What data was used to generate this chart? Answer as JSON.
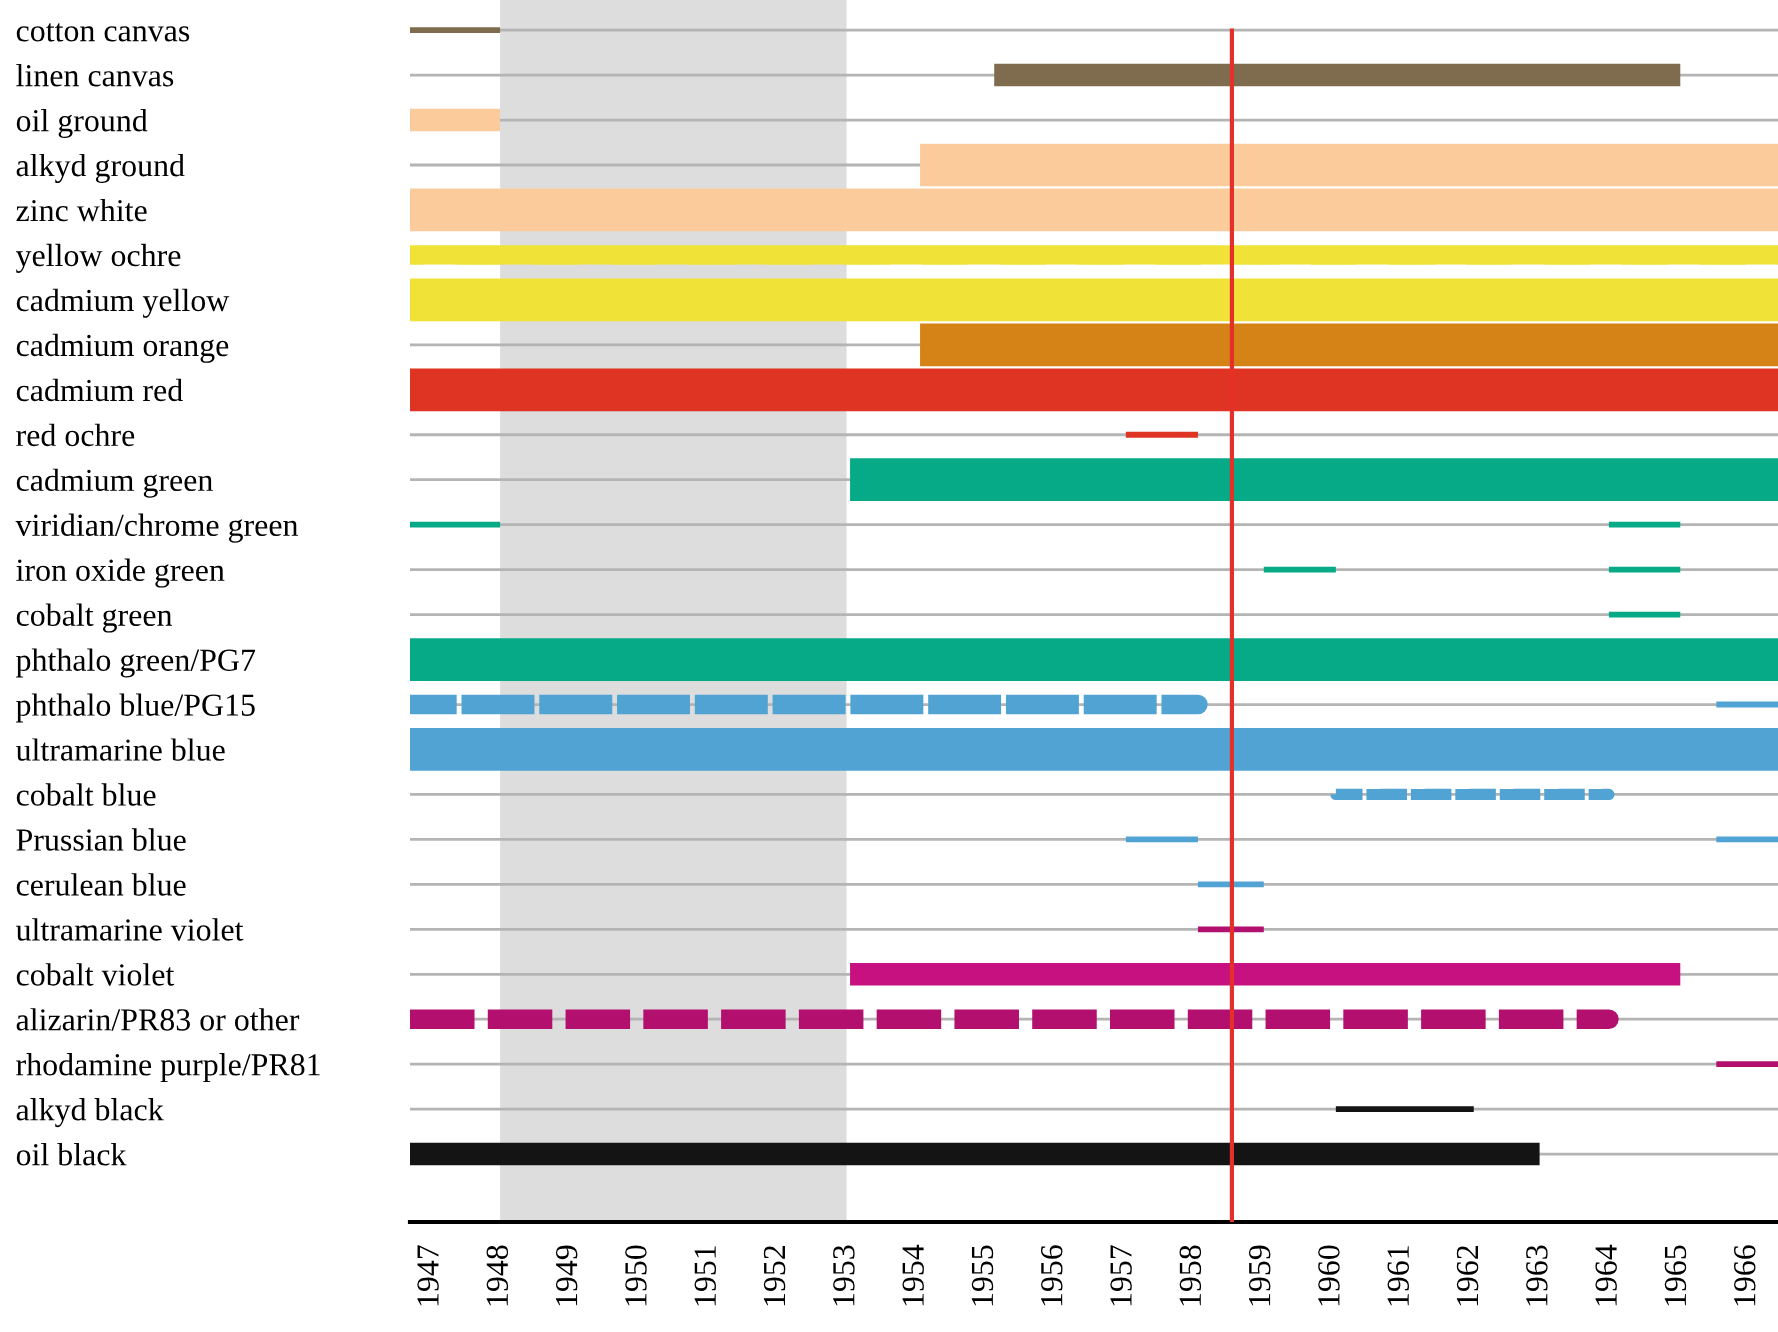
{
  "chart_data": {
    "type": "bar",
    "orientation": "horizontal",
    "grid": "y",
    "categories": [
      "cotton canvas",
      "linen canvas",
      "oil ground",
      "alkyd ground",
      "zinc white",
      "yellow ochre",
      "cadmium yellow",
      "cadmium orange",
      "cadmium red",
      "red ochre",
      "cadmium green",
      "viridian/chrome green",
      "iron oxide green",
      "cobalt green",
      "phthalo green/PG7",
      "phthalo blue/PG15",
      "ultramarine blue",
      "cobalt blue",
      "Prussian blue",
      "cerulean blue",
      "ultramarine violet",
      "cobalt violet",
      "alizarin/PR83 or other",
      "rhodamine purple/PR81",
      "alkyd black",
      "oil black"
    ],
    "series": [
      {
        "line_style": "solid",
        "base": [
          null,
          null,
          null,
          1954.06,
          1946.7,
          null,
          1946.7,
          1954.06,
          1946.7,
          null,
          1953.05,
          null,
          null,
          null,
          1946.7,
          null,
          1946.7,
          null,
          null,
          null,
          null,
          null,
          null,
          null,
          null,
          null
        ],
        "values": [
          null,
          null,
          null,
          12.38,
          19.74,
          null,
          19.74,
          12.38,
          19.74,
          null,
          13.39,
          null,
          null,
          null,
          19.74,
          null,
          19.74,
          null,
          null,
          null,
          null,
          null,
          null,
          null,
          null,
          null
        ],
        "colors": [
          null,
          null,
          null,
          "#fbcb9b",
          "#fbcb9b",
          null,
          "#f0e236",
          "#d58316",
          "#df3323",
          null,
          "#07aa87",
          null,
          null,
          null,
          "#07aa87",
          null,
          "#50a3d3",
          null,
          null,
          null,
          null,
          null,
          null,
          null,
          null,
          null
        ]
      },
      {
        "line_style": "solid",
        "base": [
          null,
          1955.13,
          1946.7,
          null,
          null,
          null,
          null,
          null,
          null,
          null,
          null,
          null,
          null,
          null,
          null,
          null,
          null,
          null,
          null,
          null,
          null,
          1953.05,
          null,
          null,
          null,
          1946.7
        ],
        "values": [
          null,
          9.9,
          1.3,
          null,
          null,
          null,
          null,
          null,
          null,
          null,
          null,
          null,
          null,
          null,
          null,
          null,
          null,
          null,
          null,
          null,
          null,
          11.98,
          null,
          null,
          null,
          16.3
        ],
        "colors": [
          null,
          "#7f6c4e",
          "#fbcb9b",
          null,
          null,
          null,
          null,
          null,
          null,
          null,
          null,
          null,
          null,
          null,
          null,
          null,
          null,
          null,
          null,
          null,
          null,
          "#c81180",
          null,
          null,
          null,
          "#141414"
        ]
      },
      {
        "line_style": "solid",
        "base": [
          1946.7,
          null,
          null,
          null,
          null,
          null,
          null,
          null,
          null,
          1957.03,
          null,
          1946.7,
          1959.02,
          1964.0,
          null,
          1965.55,
          null,
          null,
          1957.03,
          1958.07,
          1958.07,
          null,
          null,
          1965.55,
          1960.06,
          null
        ],
        "values": [
          1.3,
          null,
          null,
          null,
          null,
          null,
          null,
          null,
          null,
          1.04,
          null,
          1.3,
          1.04,
          1.03,
          null,
          0.89,
          null,
          null,
          1.04,
          0.95,
          0.95,
          null,
          null,
          0.89,
          1.99,
          null
        ],
        "colors": [
          "#7f6c4e",
          null,
          null,
          null,
          null,
          null,
          null,
          null,
          null,
          "#df3323",
          null,
          "#07aa87",
          "#07aa87",
          "#07aa87",
          null,
          "#50a3d3",
          null,
          null,
          "#50a3d3",
          "#50a3d3",
          "#b20f6f",
          null,
          null,
          "#b20f6f",
          "#141414",
          null
        ]
      },
      {
        "line_style": "solid",
        "base": [
          null,
          null,
          null,
          null,
          null,
          null,
          null,
          null,
          null,
          null,
          null,
          1964.0,
          1964.0,
          null,
          null,
          null,
          null,
          null,
          1965.55,
          null,
          null,
          null,
          null,
          null,
          null,
          null
        ],
        "values": [
          null,
          null,
          null,
          null,
          null,
          null,
          null,
          null,
          null,
          null,
          null,
          1.03,
          1.03,
          null,
          null,
          null,
          null,
          null,
          0.89,
          null,
          null,
          null,
          null,
          null,
          null,
          null
        ],
        "colors": [
          null,
          null,
          null,
          null,
          null,
          null,
          null,
          null,
          null,
          null,
          null,
          "#07aa87",
          "#07aa87",
          null,
          null,
          null,
          null,
          null,
          "#50a3d3",
          null,
          null,
          null,
          null,
          null,
          null,
          null
        ]
      },
      {
        "line_style": "dashed",
        "base": [
          null,
          null,
          null,
          null,
          null,
          1946.7,
          null,
          null,
          null,
          null,
          null,
          null,
          null,
          null,
          null,
          1946.7,
          null,
          null,
          null,
          null,
          null,
          null,
          1946.7,
          null,
          null,
          null
        ],
        "values": [
          null,
          null,
          null,
          null,
          null,
          19.74,
          null,
          null,
          null,
          null,
          null,
          null,
          null,
          null,
          null,
          11.37,
          null,
          null,
          null,
          null,
          null,
          null,
          17.3,
          null,
          null,
          null
        ],
        "colors": [
          null,
          null,
          null,
          null,
          null,
          "#f0e236",
          null,
          null,
          null,
          null,
          null,
          null,
          null,
          null,
          null,
          "#50a3d3",
          null,
          null,
          null,
          null,
          null,
          null,
          "#b20f6f",
          null,
          null,
          null
        ]
      },
      {
        "line_style": "dashed",
        "base": [
          null,
          null,
          null,
          null,
          null,
          null,
          null,
          null,
          null,
          null,
          null,
          null,
          null,
          null,
          null,
          null,
          null,
          1960.06,
          null,
          null,
          null,
          null,
          null,
          null,
          null,
          null
        ],
        "values": [
          null,
          null,
          null,
          null,
          null,
          null,
          null,
          null,
          null,
          null,
          null,
          null,
          null,
          null,
          null,
          null,
          null,
          3.94,
          null,
          null,
          null,
          null,
          null,
          null,
          null,
          null
        ],
        "colors": [
          null,
          null,
          null,
          null,
          null,
          null,
          null,
          null,
          null,
          null,
          null,
          null,
          null,
          null,
          null,
          null,
          null,
          "#50a3d3",
          null,
          null,
          null,
          null,
          null,
          null,
          null,
          null
        ]
      }
    ],
    "xlim": [
      1946.7,
      1966.44
    ],
    "xticks": [
      1947,
      1948,
      1949,
      1950,
      1951,
      1952,
      1953,
      1954,
      1955,
      1956,
      1957,
      1958,
      1959,
      1960,
      1961,
      1962,
      1963,
      1964,
      1965,
      1966
    ],
    "ref_lines": [
      {
        "axis": "x",
        "value": 1958.56,
        "color": "#e5302a"
      }
    ],
    "bands": [
      {
        "axis": "x",
        "from": 1948,
        "to": 1953,
        "color": "#dcdddc"
      }
    ]
  }
}
